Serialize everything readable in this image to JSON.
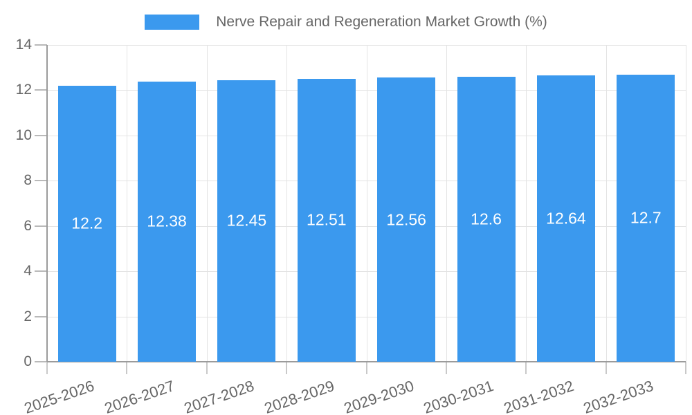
{
  "chart_data": {
    "type": "bar",
    "title": "Nerve Repair and Regeneration Market Growth (%)",
    "categories": [
      "2025-2026",
      "2026-2027",
      "2027-2028",
      "2028-2029",
      "2029-2030",
      "2030-2031",
      "2031-2032",
      "2032-2033"
    ],
    "values": [
      12.2,
      12.38,
      12.45,
      12.51,
      12.56,
      12.6,
      12.64,
      12.7
    ],
    "value_labels": [
      "12.2",
      "12.38",
      "12.45",
      "12.51",
      "12.56",
      "12.6",
      "12.64",
      "12.7"
    ],
    "xlabel": "",
    "ylabel": "",
    "ylim": [
      0,
      14
    ],
    "ytick_step": 2,
    "ytick_labels": [
      "0",
      "2",
      "4",
      "6",
      "8",
      "10",
      "12",
      "14"
    ],
    "grid": "on",
    "legend_position": "top",
    "value_label_position": "center-inside",
    "colors": {
      "bar": "#3b99ee",
      "axis_text": "#666666",
      "grid_line": "#e3e3e3",
      "axis_line": "#9b9b9b",
      "bar_label_text": "#ffffff",
      "background": "#ffffff"
    }
  }
}
